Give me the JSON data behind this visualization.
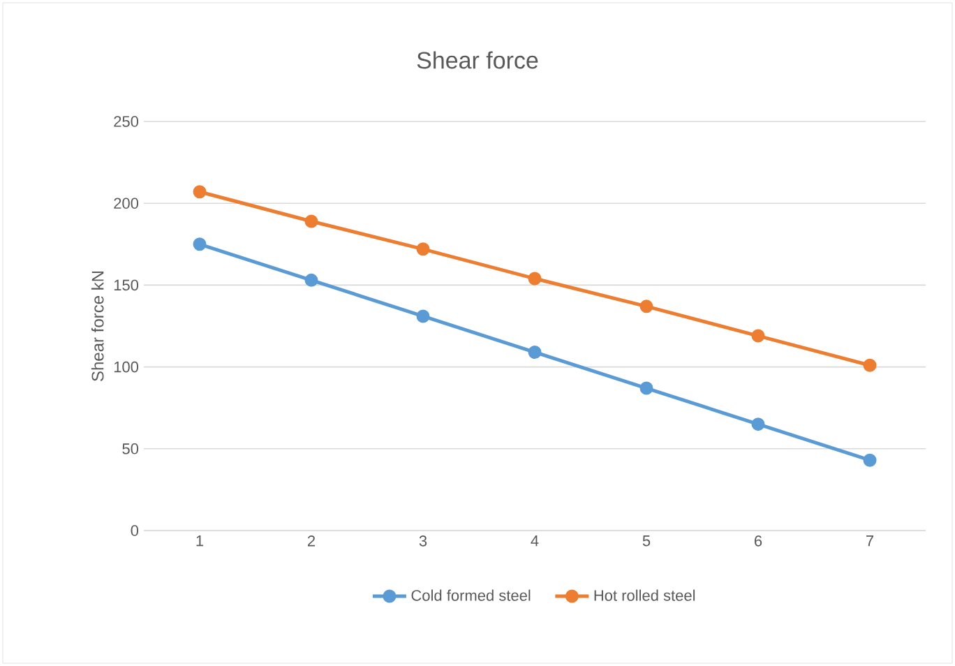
{
  "chart_data": {
    "type": "line",
    "title": "Shear force",
    "ylabel": "Shear force kN",
    "categories": [
      "1",
      "2",
      "3",
      "4",
      "5",
      "6",
      "7"
    ],
    "series": [
      {
        "name": "Cold formed steel",
        "color": "#5b9bd5",
        "values": [
          175,
          153,
          131,
          109,
          87,
          65,
          43
        ]
      },
      {
        "name": "Hot rolled steel",
        "color": "#ed7d31",
        "values": [
          207,
          189,
          172,
          154,
          137,
          119,
          101
        ]
      }
    ],
    "ylim": [
      0,
      250
    ],
    "yticks": [
      0,
      50,
      100,
      150,
      200,
      250
    ],
    "grid": "y",
    "legend": "bottom",
    "marker": "circle",
    "line_style": "solid"
  }
}
